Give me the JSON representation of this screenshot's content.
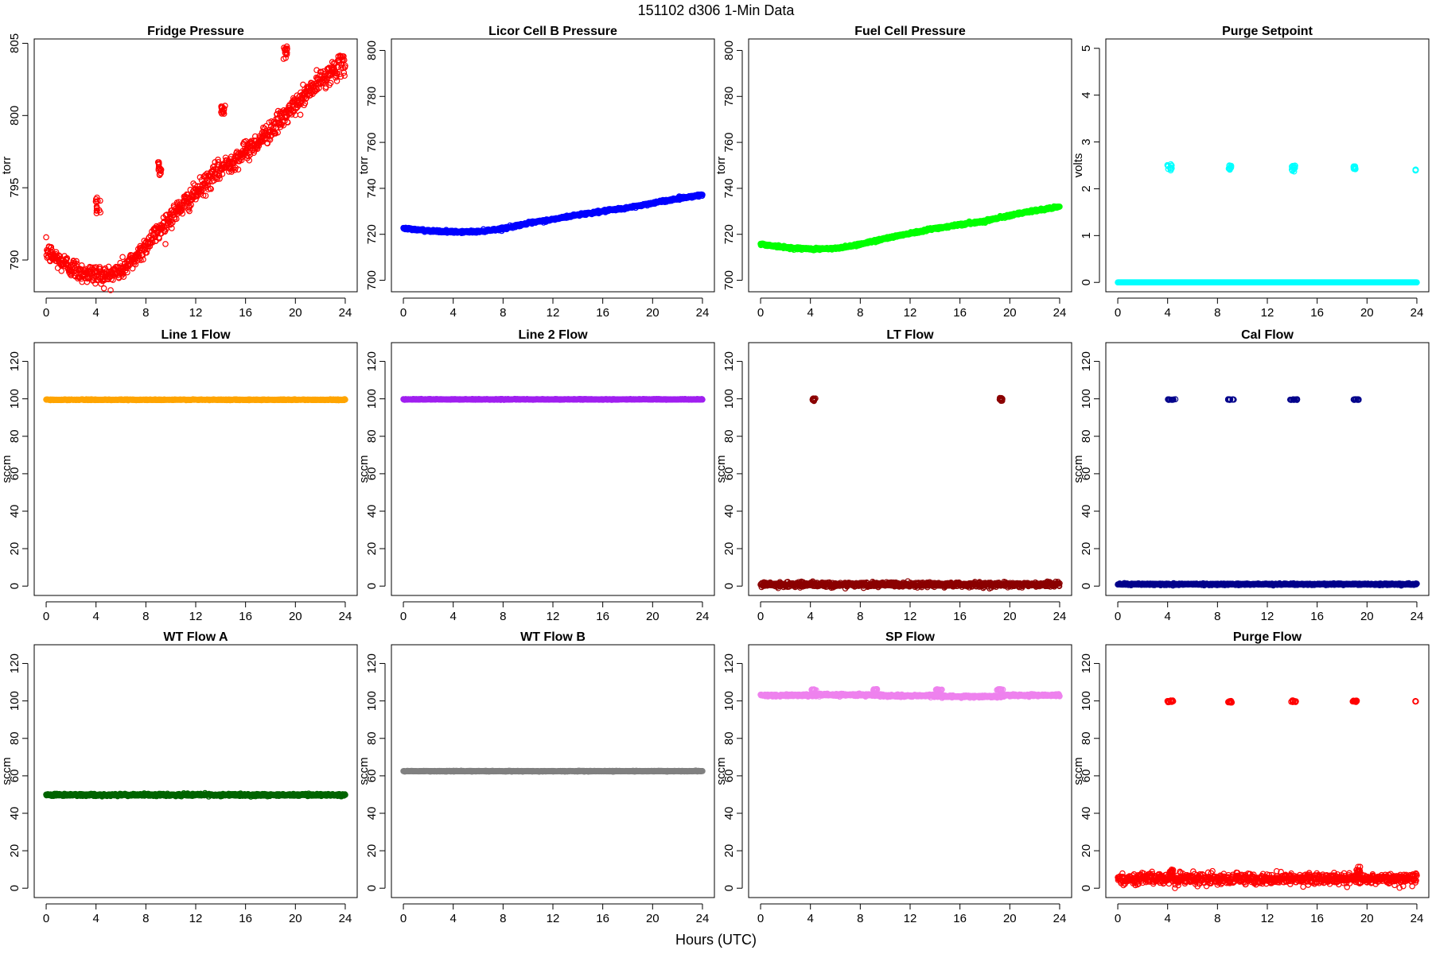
{
  "figure": {
    "title": "151102   d306   1-Min Data",
    "xlabel": "Hours (UTC)"
  },
  "chart_data": [
    {
      "type": "scatter",
      "title": "Fridge Pressure",
      "ylabel": "torr",
      "color": "#ff0000",
      "xlim": [
        0,
        24
      ],
      "ylim": [
        787.8,
        805.3
      ],
      "xticks": [
        0,
        4,
        8,
        12,
        16,
        20,
        24
      ],
      "yticks": [
        790,
        795,
        800,
        805
      ],
      "series": [
        {
          "kind": "curve",
          "points": [
            [
              0,
              790.6
            ],
            [
              1,
              790.0
            ],
            [
              2,
              789.5
            ],
            [
              3,
              789.1
            ],
            [
              4,
              789.0
            ],
            [
              5,
              788.9
            ],
            [
              6,
              789.3
            ],
            [
              7,
              790.0
            ],
            [
              8,
              791.0
            ],
            [
              9,
              792.0
            ],
            [
              10,
              793.0
            ],
            [
              11,
              793.8
            ],
            [
              12,
              794.6
            ],
            [
              13,
              795.5
            ],
            [
              14,
              796.3
            ],
            [
              15,
              796.9
            ],
            [
              16,
              797.5
            ],
            [
              17,
              798.2
            ],
            [
              18,
              799.0
            ],
            [
              19,
              799.8
            ],
            [
              20,
              800.7
            ],
            [
              21,
              801.6
            ],
            [
              22,
              802.4
            ],
            [
              23,
              803.1
            ],
            [
              24,
              803.6
            ]
          ],
          "noise": 0.35
        },
        {
          "kind": "cluster",
          "x": 4.2,
          "y": 793.8,
          "spread_x": 0.25,
          "spread_y": 0.7
        },
        {
          "kind": "cluster",
          "x": 9.1,
          "y": 796.3,
          "spread_x": 0.15,
          "spread_y": 0.5
        },
        {
          "kind": "cluster",
          "x": 14.2,
          "y": 800.4,
          "spread_x": 0.2,
          "spread_y": 0.4
        },
        {
          "kind": "cluster",
          "x": 19.2,
          "y": 804.2,
          "spread_x": 0.15,
          "spread_y": 0.6
        }
      ]
    },
    {
      "type": "scatter",
      "title": "Licor Cell B Pressure",
      "ylabel": "torr",
      "color": "#0000ff",
      "xlim": [
        0,
        24
      ],
      "ylim": [
        695,
        805
      ],
      "xticks": [
        0,
        4,
        8,
        12,
        16,
        20,
        24
      ],
      "yticks": [
        700,
        720,
        740,
        760,
        780,
        800
      ],
      "series": [
        {
          "kind": "curve",
          "points": [
            [
              0,
              722.5
            ],
            [
              2,
              721.6
            ],
            [
              4,
              721.0
            ],
            [
              6,
              721.2
            ],
            [
              8,
              722.5
            ],
            [
              10,
              724.8
            ],
            [
              12,
              726.5
            ],
            [
              14,
              728.5
            ],
            [
              16,
              730.0
            ],
            [
              18,
              731.5
            ],
            [
              20,
              733.6
            ],
            [
              22,
              735.5
            ],
            [
              24,
              737.2
            ]
          ],
          "noise": 0.25
        }
      ]
    },
    {
      "type": "scatter",
      "title": "Fuel Cell Pressure",
      "ylabel": "torr",
      "color": "#00ff00",
      "xlim": [
        0,
        24
      ],
      "ylim": [
        695,
        805
      ],
      "xticks": [
        0,
        4,
        8,
        12,
        16,
        20,
        24
      ],
      "yticks": [
        700,
        720,
        740,
        760,
        780,
        800
      ],
      "series": [
        {
          "kind": "curve",
          "points": [
            [
              0,
              715.7
            ],
            [
              2,
              714.3
            ],
            [
              4,
              713.6
            ],
            [
              6,
              713.8
            ],
            [
              8,
              715.7
            ],
            [
              10,
              718.2
            ],
            [
              12,
              720.5
            ],
            [
              14,
              722.6
            ],
            [
              16,
              724.2
            ],
            [
              18,
              725.8
            ],
            [
              20,
              728.3
            ],
            [
              22,
              730.2
            ],
            [
              24,
              732.0
            ]
          ],
          "noise": 0.25
        }
      ]
    },
    {
      "type": "scatter",
      "title": "Purge Setpoint",
      "ylabel": "volts",
      "color": "#00ffff",
      "xlim": [
        0,
        24
      ],
      "ylim": [
        -0.2,
        5.2
      ],
      "xticks": [
        0,
        4,
        8,
        12,
        16,
        20,
        24
      ],
      "yticks": [
        0,
        1,
        2,
        3,
        4,
        5
      ],
      "series": [
        {
          "kind": "curve",
          "points": [
            [
              0,
              0
            ],
            [
              24,
              0
            ]
          ],
          "noise": 0
        },
        {
          "kind": "cluster",
          "x": 4.15,
          "y": 2.45,
          "spread_x": 0.2,
          "spread_y": 0.08
        },
        {
          "kind": "cluster",
          "x": 9.0,
          "y": 2.45,
          "spread_x": 0.1,
          "spread_y": 0.05
        },
        {
          "kind": "cluster",
          "x": 14.1,
          "y": 2.43,
          "spread_x": 0.15,
          "spread_y": 0.08
        },
        {
          "kind": "cluster",
          "x": 19.0,
          "y": 2.45,
          "spread_x": 0.1,
          "spread_y": 0.04
        },
        {
          "kind": "cluster",
          "x": 23.9,
          "y": 2.4,
          "spread_x": 0.02,
          "spread_y": 0.01
        }
      ]
    },
    {
      "type": "scatter",
      "title": "Line 1 Flow",
      "ylabel": "sccm",
      "color": "#ffa500",
      "xlim": [
        0,
        24
      ],
      "ylim": [
        -5,
        130
      ],
      "xticks": [
        0,
        4,
        8,
        12,
        16,
        20,
        24
      ],
      "yticks": [
        0,
        20,
        40,
        60,
        80,
        100,
        120
      ],
      "series": [
        {
          "kind": "curve",
          "points": [
            [
              0,
              99.5
            ],
            [
              24,
              99.5
            ]
          ],
          "noise": 0.1
        }
      ]
    },
    {
      "type": "scatter",
      "title": "Line 2 Flow",
      "ylabel": "sccm",
      "color": "#a020f0",
      "xlim": [
        0,
        24
      ],
      "ylim": [
        -5,
        130
      ],
      "xticks": [
        0,
        4,
        8,
        12,
        16,
        20,
        24
      ],
      "yticks": [
        0,
        20,
        40,
        60,
        80,
        100,
        120
      ],
      "series": [
        {
          "kind": "curve",
          "points": [
            [
              0,
              99.7
            ],
            [
              24,
              99.7
            ]
          ],
          "noise": 0.1
        }
      ]
    },
    {
      "type": "scatter",
      "title": "LT Flow",
      "ylabel": "sccm",
      "color": "#8b0000",
      "xlim": [
        0,
        24
      ],
      "ylim": [
        -5,
        130
      ],
      "xticks": [
        0,
        4,
        8,
        12,
        16,
        20,
        24
      ],
      "yticks": [
        0,
        20,
        40,
        60,
        80,
        100,
        120
      ],
      "series": [
        {
          "kind": "curve",
          "points": [
            [
              0,
              0.8
            ],
            [
              24,
              0.8
            ]
          ],
          "noise": 0.6
        },
        {
          "kind": "cluster",
          "x": 4.3,
          "y": 99.8,
          "spread_x": 0.12,
          "spread_y": 1.0
        },
        {
          "kind": "cluster",
          "x": 19.3,
          "y": 99.8,
          "spread_x": 0.12,
          "spread_y": 1.0
        }
      ]
    },
    {
      "type": "scatter",
      "title": "Cal Flow",
      "ylabel": "sccm",
      "color": "#00008b",
      "xlim": [
        0,
        24
      ],
      "ylim": [
        -5,
        130
      ],
      "xticks": [
        0,
        4,
        8,
        12,
        16,
        20,
        24
      ],
      "yticks": [
        0,
        20,
        40,
        60,
        80,
        100,
        120
      ],
      "series": [
        {
          "kind": "curve",
          "points": [
            [
              0,
              1.0
            ],
            [
              24,
              1.0
            ]
          ],
          "noise": 0.2
        },
        {
          "kind": "cluster",
          "x": 4.3,
          "y": 99.6,
          "spread_x": 0.35,
          "spread_y": 0.2
        },
        {
          "kind": "cluster",
          "x": 9.1,
          "y": 99.6,
          "spread_x": 0.25,
          "spread_y": 0.2
        },
        {
          "kind": "cluster",
          "x": 14.1,
          "y": 99.6,
          "spread_x": 0.3,
          "spread_y": 0.2
        },
        {
          "kind": "cluster",
          "x": 19.1,
          "y": 99.6,
          "spread_x": 0.3,
          "spread_y": 0.2
        }
      ]
    },
    {
      "type": "scatter",
      "title": "WT Flow A",
      "ylabel": "sccm",
      "color": "#006400",
      "xlim": [
        0,
        24
      ],
      "ylim": [
        -5,
        130
      ],
      "xticks": [
        0,
        4,
        8,
        12,
        16,
        20,
        24
      ],
      "yticks": [
        0,
        20,
        40,
        60,
        80,
        100,
        120
      ],
      "series": [
        {
          "kind": "curve",
          "points": [
            [
              0,
              49.8
            ],
            [
              24,
              49.8
            ]
          ],
          "noise": 0.3
        }
      ]
    },
    {
      "type": "scatter",
      "title": "WT Flow B",
      "ylabel": "sccm",
      "color": "#808080",
      "xlim": [
        0,
        24
      ],
      "ylim": [
        -5,
        130
      ],
      "xticks": [
        0,
        4,
        8,
        12,
        16,
        20,
        24
      ],
      "yticks": [
        0,
        20,
        40,
        60,
        80,
        100,
        120
      ],
      "series": [
        {
          "kind": "curve",
          "points": [
            [
              0,
              62.5
            ],
            [
              24,
              62.5
            ]
          ],
          "noise": 0.1
        }
      ]
    },
    {
      "type": "scatter",
      "title": "SP Flow",
      "ylabel": "sccm",
      "color": "#ee82ee",
      "xlim": [
        0,
        24
      ],
      "ylim": [
        -5,
        130
      ],
      "xticks": [
        0,
        4,
        8,
        12,
        16,
        20,
        24
      ],
      "yticks": [
        0,
        20,
        40,
        60,
        80,
        100,
        120
      ],
      "series": [
        {
          "kind": "curve",
          "points": [
            [
              0,
              103.0
            ],
            [
              3.9,
              103.0
            ],
            [
              4.6,
              103.2
            ],
            [
              9.3,
              103.2
            ],
            [
              10,
              102.8
            ],
            [
              14,
              102.8
            ],
            [
              15,
              102.4
            ],
            [
              19,
              102.4
            ],
            [
              19.8,
              103.0
            ],
            [
              24,
              103.0
            ]
          ],
          "noise": 0.3
        },
        {
          "kind": "cluster",
          "x": 4.3,
          "y": 106.0,
          "spread_x": 0.3,
          "spread_y": 0.3
        },
        {
          "kind": "cluster",
          "x": 9.2,
          "y": 106.0,
          "spread_x": 0.15,
          "spread_y": 0.3
        },
        {
          "kind": "cluster",
          "x": 14.3,
          "y": 106.0,
          "spread_x": 0.25,
          "spread_y": 0.3
        },
        {
          "kind": "cluster",
          "x": 19.2,
          "y": 106.0,
          "spread_x": 0.25,
          "spread_y": 0.3
        }
      ]
    },
    {
      "type": "scatter",
      "title": "Purge Flow",
      "ylabel": "sccm",
      "color": "#ff0000",
      "xlim": [
        0,
        24
      ],
      "ylim": [
        -5,
        130
      ],
      "xticks": [
        0,
        4,
        8,
        12,
        16,
        20,
        24
      ],
      "yticks": [
        0,
        20,
        40,
        60,
        80,
        100,
        120
      ],
      "series": [
        {
          "kind": "curve",
          "points": [
            [
              0,
              5
            ],
            [
              24,
              5
            ]
          ],
          "noise": 1.4
        },
        {
          "kind": "cluster",
          "x": 4.3,
          "y": 9.0,
          "spread_x": 0.15,
          "spread_y": 1.0
        },
        {
          "kind": "cluster",
          "x": 19.3,
          "y": 9.5,
          "spread_x": 0.15,
          "spread_y": 2.0
        },
        {
          "kind": "cluster",
          "x": 4.2,
          "y": 99.8,
          "spread_x": 0.25,
          "spread_y": 0.5
        },
        {
          "kind": "cluster",
          "x": 9.0,
          "y": 99.6,
          "spread_x": 0.15,
          "spread_y": 0.5
        },
        {
          "kind": "cluster",
          "x": 14.1,
          "y": 99.8,
          "spread_x": 0.2,
          "spread_y": 0.5
        },
        {
          "kind": "cluster",
          "x": 19.0,
          "y": 99.8,
          "spread_x": 0.2,
          "spread_y": 0.4
        },
        {
          "kind": "cluster",
          "x": 23.9,
          "y": 99.8,
          "spread_x": 0.02,
          "spread_y": 0.1
        }
      ]
    }
  ]
}
